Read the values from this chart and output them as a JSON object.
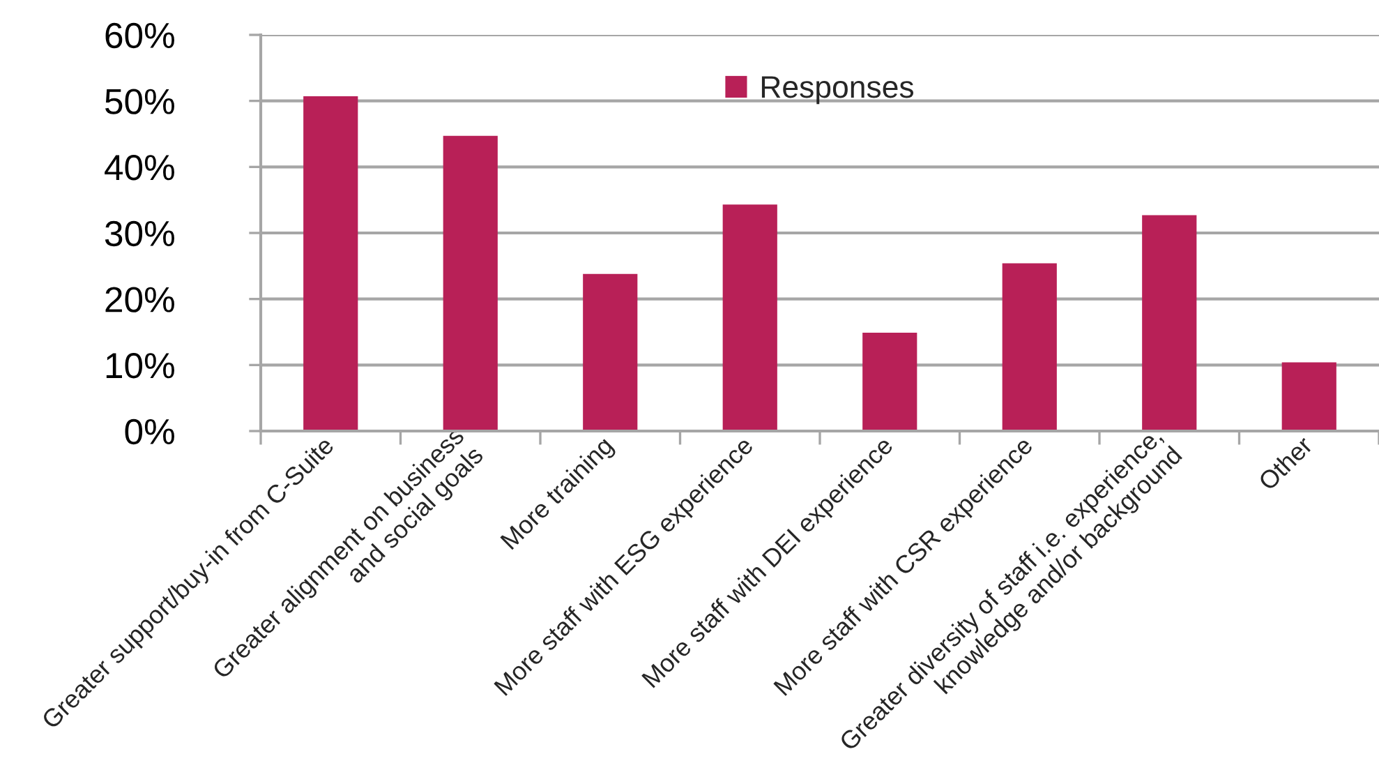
{
  "chart_data": {
    "type": "bar",
    "categories": [
      "Greater support/buy-in from C-Suite",
      "Greater alignment on business\nand social goals",
      "More training",
      "More staff with ESG experience",
      "More staff with DEI experience",
      "More staff with CSR experience",
      "Greater diversity of staff i.e. experience,\nknowledge and/or background",
      "Other"
    ],
    "series": [
      {
        "name": "Responses",
        "color": "#b82057",
        "values": [
          50.7,
          44.7,
          23.8,
          34.3,
          14.9,
          25.4,
          32.7,
          10.4
        ]
      }
    ],
    "ylim": [
      0,
      60
    ],
    "yticks": [
      {
        "value": 0,
        "label": "0%"
      },
      {
        "value": 10,
        "label": "10%"
      },
      {
        "value": 20,
        "label": "20%"
      },
      {
        "value": 30,
        "label": "30%"
      },
      {
        "value": 40,
        "label": "40%"
      },
      {
        "value": 50,
        "label": "50%"
      },
      {
        "value": 60,
        "label": "60%"
      }
    ],
    "grid": "y",
    "legend": "top"
  }
}
